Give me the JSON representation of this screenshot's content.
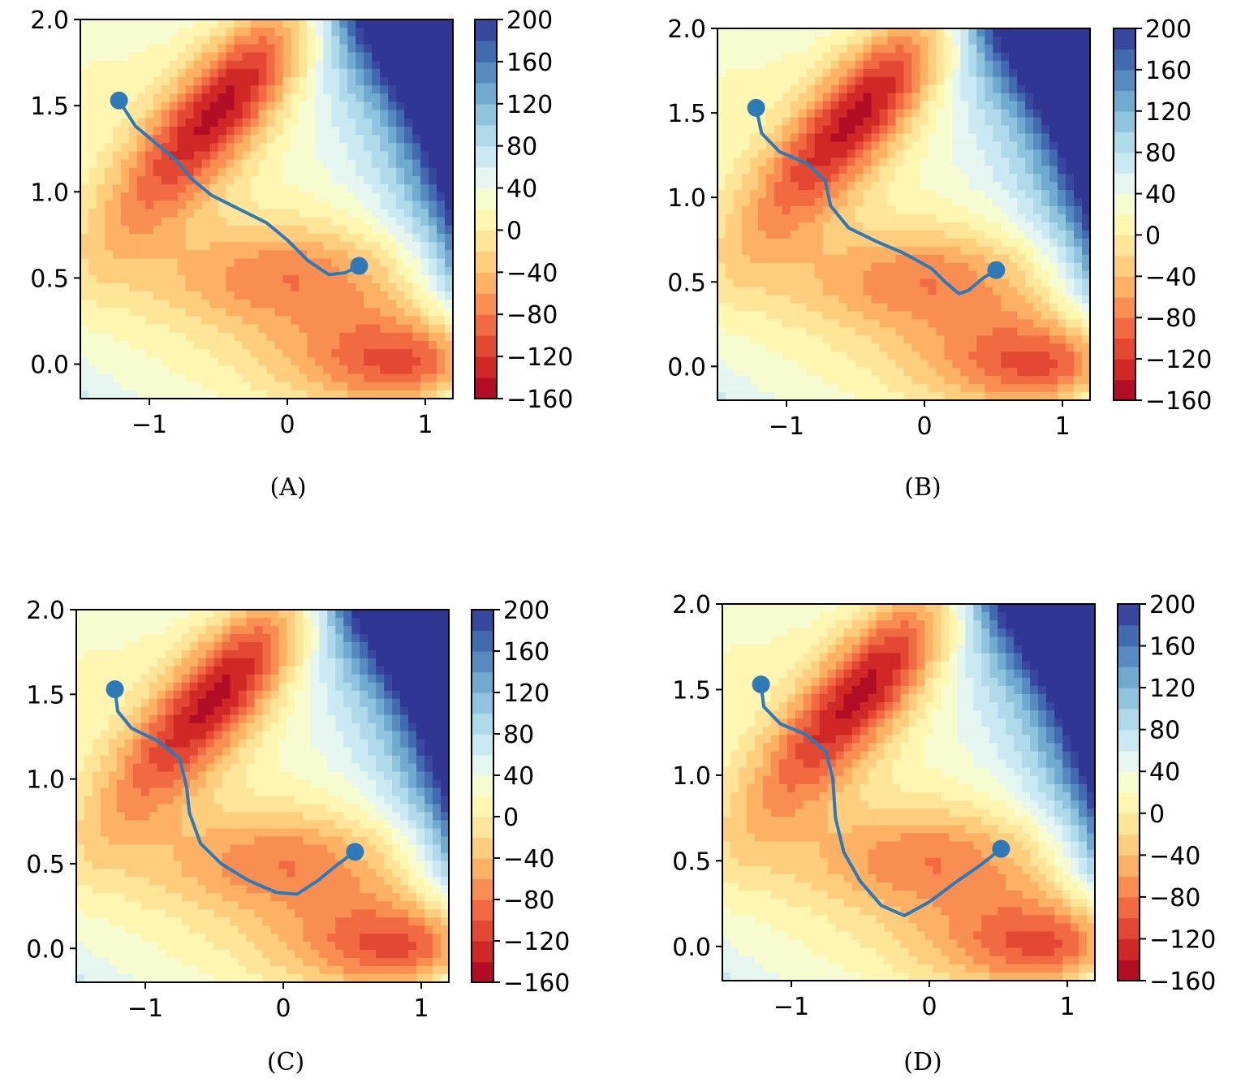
{
  "chart_data": [
    {
      "type": "contour",
      "caption": "(A)",
      "x_ticks": [
        "−1",
        "0",
        "1"
      ],
      "x_tick_values": [
        -1,
        0,
        1
      ],
      "y_ticks": [
        "0.0",
        "0.5",
        "1.0",
        "1.5",
        "2.0"
      ],
      "y_tick_values": [
        0.0,
        0.5,
        1.0,
        1.5,
        2.0
      ],
      "xlim": [
        -1.5,
        1.2
      ],
      "ylim": [
        -0.2,
        2.0
      ],
      "colorbar_ticks": [
        "200",
        "160",
        "120",
        "80",
        "40",
        "0",
        "−40",
        "−80",
        "−120",
        "−160"
      ],
      "colorbar_range": [
        -160,
        200
      ],
      "colormap": "RdYlBu",
      "path_color": "#2e7ab8",
      "start_point": [
        -1.22,
        1.53
      ],
      "end_point": [
        0.52,
        0.57
      ],
      "path": [
        [
          -1.22,
          1.53
        ],
        [
          -1.1,
          1.38
        ],
        [
          -0.95,
          1.28
        ],
        [
          -0.8,
          1.18
        ],
        [
          -0.7,
          1.08
        ],
        [
          -0.55,
          0.98
        ],
        [
          -0.35,
          0.9
        ],
        [
          -0.15,
          0.82
        ],
        [
          0.0,
          0.72
        ],
        [
          0.15,
          0.6
        ],
        [
          0.3,
          0.52
        ],
        [
          0.42,
          0.53
        ],
        [
          0.52,
          0.57
        ]
      ]
    },
    {
      "type": "contour",
      "caption": "(B)",
      "x_ticks": [
        "−1",
        "0",
        "1"
      ],
      "x_tick_values": [
        -1,
        0,
        1
      ],
      "y_ticks": [
        "0.0",
        "0.5",
        "1.0",
        "1.5",
        "2.0"
      ],
      "y_tick_values": [
        0.0,
        0.5,
        1.0,
        1.5,
        2.0
      ],
      "xlim": [
        -1.5,
        1.2
      ],
      "ylim": [
        -0.2,
        2.0
      ],
      "colorbar_ticks": [
        "200",
        "160",
        "120",
        "80",
        "40",
        "0",
        "−40",
        "−80",
        "−120",
        "−160"
      ],
      "colorbar_range": [
        -160,
        200
      ],
      "colormap": "RdYlBu",
      "path_color": "#2e7ab8",
      "start_point": [
        -1.22,
        1.53
      ],
      "end_point": [
        0.52,
        0.57
      ],
      "path": [
        [
          -1.22,
          1.53
        ],
        [
          -1.18,
          1.38
        ],
        [
          -1.05,
          1.27
        ],
        [
          -0.85,
          1.2
        ],
        [
          -0.72,
          1.1
        ],
        [
          -0.68,
          0.95
        ],
        [
          -0.55,
          0.82
        ],
        [
          -0.35,
          0.74
        ],
        [
          -0.15,
          0.67
        ],
        [
          0.05,
          0.58
        ],
        [
          0.15,
          0.5
        ],
        [
          0.25,
          0.43
        ],
        [
          0.32,
          0.45
        ],
        [
          0.42,
          0.52
        ],
        [
          0.52,
          0.57
        ]
      ]
    },
    {
      "type": "contour",
      "caption": "(C)",
      "x_ticks": [
        "−1",
        "0",
        "1"
      ],
      "x_tick_values": [
        -1,
        0,
        1
      ],
      "y_ticks": [
        "0.0",
        "0.5",
        "1.0",
        "1.5",
        "2.0"
      ],
      "y_tick_values": [
        0.0,
        0.5,
        1.0,
        1.5,
        2.0
      ],
      "xlim": [
        -1.5,
        1.2
      ],
      "ylim": [
        -0.2,
        2.0
      ],
      "colorbar_ticks": [
        "200",
        "160",
        "120",
        "80",
        "40",
        "0",
        "−40",
        "−80",
        "−120",
        "−160"
      ],
      "colorbar_range": [
        -160,
        200
      ],
      "colormap": "RdYlBu",
      "path_color": "#2e7ab8",
      "start_point": [
        -1.22,
        1.53
      ],
      "end_point": [
        0.52,
        0.57
      ],
      "path": [
        [
          -1.22,
          1.53
        ],
        [
          -1.2,
          1.4
        ],
        [
          -1.1,
          1.3
        ],
        [
          -0.9,
          1.22
        ],
        [
          -0.75,
          1.12
        ],
        [
          -0.7,
          0.95
        ],
        [
          -0.68,
          0.8
        ],
        [
          -0.6,
          0.62
        ],
        [
          -0.45,
          0.5
        ],
        [
          -0.25,
          0.4
        ],
        [
          -0.05,
          0.33
        ],
        [
          0.1,
          0.32
        ],
        [
          0.25,
          0.4
        ],
        [
          0.4,
          0.5
        ],
        [
          0.52,
          0.57
        ]
      ]
    },
    {
      "type": "contour",
      "caption": "(D)",
      "x_ticks": [
        "−1",
        "0",
        "1"
      ],
      "x_tick_values": [
        -1,
        0,
        1
      ],
      "y_ticks": [
        "0.0",
        "0.5",
        "1.0",
        "1.5",
        "2.0"
      ],
      "y_tick_values": [
        0.0,
        0.5,
        1.0,
        1.5,
        2.0
      ],
      "xlim": [
        -1.5,
        1.2
      ],
      "ylim": [
        -0.2,
        2.0
      ],
      "colorbar_ticks": [
        "200",
        "160",
        "120",
        "80",
        "40",
        "0",
        "−40",
        "−80",
        "−120",
        "−160"
      ],
      "colorbar_range": [
        -160,
        200
      ],
      "colormap": "RdYlBu",
      "path_color": "#2e7ab8",
      "start_point": [
        -1.22,
        1.53
      ],
      "end_point": [
        0.52,
        0.57
      ],
      "path": [
        [
          -1.22,
          1.53
        ],
        [
          -1.2,
          1.4
        ],
        [
          -1.08,
          1.3
        ],
        [
          -0.9,
          1.24
        ],
        [
          -0.75,
          1.14
        ],
        [
          -0.7,
          0.98
        ],
        [
          -0.68,
          0.75
        ],
        [
          -0.62,
          0.55
        ],
        [
          -0.5,
          0.38
        ],
        [
          -0.35,
          0.24
        ],
        [
          -0.18,
          0.18
        ],
        [
          0.0,
          0.26
        ],
        [
          0.2,
          0.38
        ],
        [
          0.38,
          0.48
        ],
        [
          0.52,
          0.57
        ]
      ]
    }
  ]
}
